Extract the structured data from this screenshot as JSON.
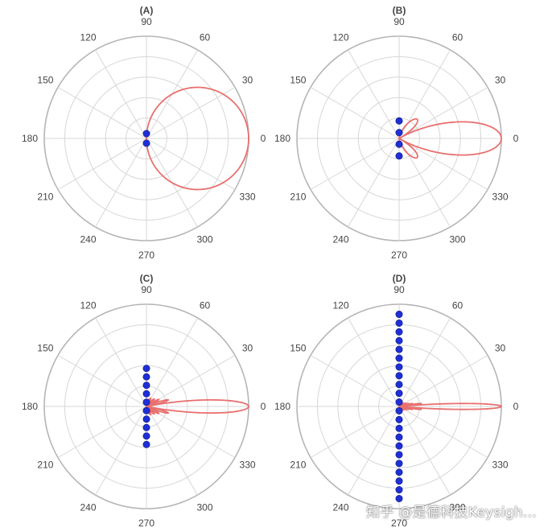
{
  "chart_data": [
    {
      "type": "polar",
      "panel_label": "(A)",
      "angle_ticks": [
        "90",
        "60",
        "30",
        "0",
        "330",
        "300",
        "270",
        "240",
        "210",
        "180",
        "150",
        "120"
      ],
      "rings": 5,
      "lobe": {
        "main_direction_deg": 0,
        "beamwidth_deg": 100,
        "sidelobes": false
      },
      "elements": 2,
      "colors": {
        "grid": "#d7d7d7",
        "outer_ring": "#b5b5b5",
        "pattern": "#e8706f",
        "elements": "#1f2fd6"
      }
    },
    {
      "type": "polar",
      "panel_label": "(B)",
      "angle_ticks": [
        "90",
        "60",
        "30",
        "0",
        "330",
        "300",
        "270",
        "240",
        "210",
        "180",
        "150",
        "120"
      ],
      "rings": 5,
      "lobe": {
        "main_direction_deg": 0,
        "beamwidth_deg": 30,
        "sidelobes": true
      },
      "elements": 4,
      "colors": {
        "grid": "#d7d7d7",
        "outer_ring": "#b5b5b5",
        "pattern": "#e8706f",
        "elements": "#1f2fd6"
      }
    },
    {
      "type": "polar",
      "panel_label": "(C)",
      "angle_ticks": [
        "90",
        "60",
        "30",
        "0",
        "330",
        "300",
        "270",
        "240",
        "210",
        "180",
        "150",
        "120"
      ],
      "rings": 5,
      "lobe": {
        "main_direction_deg": 0,
        "beamwidth_deg": 14,
        "sidelobes": true
      },
      "elements": 10,
      "colors": {
        "grid": "#d7d7d7",
        "outer_ring": "#b5b5b5",
        "pattern": "#e8706f",
        "elements": "#1f2fd6"
      }
    },
    {
      "type": "polar",
      "panel_label": "(D)",
      "angle_ticks": [
        "90",
        "60",
        "30",
        "0",
        "330",
        "300",
        "270",
        "240",
        "210",
        "180",
        "150",
        "120"
      ],
      "rings": 5,
      "lobe": {
        "main_direction_deg": 0,
        "beamwidth_deg": 7,
        "sidelobes": true
      },
      "elements": 22,
      "colors": {
        "grid": "#d7d7d7",
        "outer_ring": "#b5b5b5",
        "pattern": "#e8706f",
        "elements": "#1f2fd6"
      }
    }
  ],
  "watermark": "知乎 @是德科技Keysigh..."
}
